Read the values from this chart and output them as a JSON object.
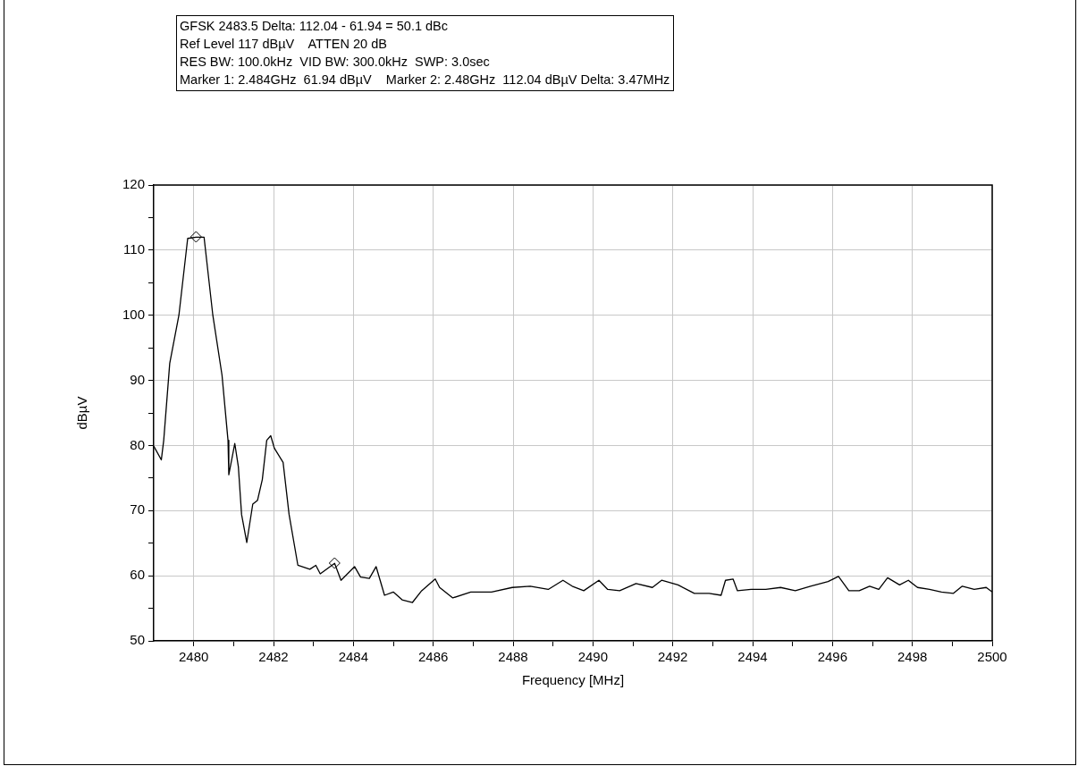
{
  "chart_data": {
    "type": "line",
    "xlabel": "Frequency [MHz]",
    "ylabel": "dBµV",
    "annotations": [
      "GFSK 2483.5 Delta: 112.04 - 61.94 = 50.1 dBc",
      "Ref Level 117 dBµV    ATTEN 20 dB",
      "RES BW: 100.0kHz  VID BW: 300.0kHz  SWP: 3.0sec",
      "Marker 1: 2.484GHz  61.94 dBµV    Marker 2: 2.48GHz  112.04 dBµV Delta: 3.47MHz"
    ],
    "xlim": [
      2479,
      2500
    ],
    "xticks": [
      2480,
      {
        "value": 2481,
        "label": null
      },
      2482,
      {
        "value": 2483,
        "label": null
      },
      2484,
      {
        "value": 2485,
        "label": null
      },
      2486,
      {
        "value": 2487,
        "label": null
      },
      2488,
      {
        "value": 2489,
        "label": null
      },
      2490,
      {
        "value": 2491,
        "label": null
      },
      2492,
      {
        "value": 2493,
        "label": null
      },
      2494,
      {
        "value": 2495,
        "label": null
      },
      2496,
      {
        "value": 2497,
        "label": null
      },
      2498,
      {
        "value": 2499,
        "label": null
      },
      2500
    ],
    "ylim": [
      50,
      120
    ],
    "yticks": [
      50,
      {
        "value": 55,
        "label": null
      },
      60,
      {
        "value": 65,
        "label": null
      },
      70,
      {
        "value": 75,
        "label": null
      },
      80,
      {
        "value": 85,
        "label": null
      },
      90,
      {
        "value": 95,
        "label": null
      },
      100,
      {
        "value": 105,
        "label": null
      },
      110,
      {
        "value": 115,
        "label": null
      },
      120
    ],
    "grid": true,
    "legend": false,
    "marker": "none",
    "line_style": "solid",
    "series": [
      {
        "type": "line",
        "color": "#000000",
        "x": [
          2479.0,
          2479.19,
          2479.25,
          2479.4,
          2479.63,
          2479.85,
          2480.06,
          2480.26,
          2480.48,
          2480.71,
          2480.86,
          2480.88,
          2481.03,
          2481.12,
          2481.2,
          2481.33,
          2481.48,
          2481.6,
          2481.72,
          2481.83,
          2481.93,
          2482.02,
          2482.24,
          2482.39,
          2482.61,
          2482.91,
          2483.06,
          2483.17,
          2483.53,
          2483.69,
          2484.03,
          2484.18,
          2484.4,
          2484.57,
          2484.78,
          2485.0,
          2485.22,
          2485.48,
          2485.71,
          2486.05,
          2486.16,
          2486.49,
          2486.94,
          2487.46,
          2487.98,
          2488.43,
          2488.88,
          2489.25,
          2489.48,
          2489.77,
          2490.15,
          2490.37,
          2490.67,
          2491.08,
          2491.49,
          2491.72,
          2492.13,
          2492.54,
          2492.91,
          2493.21,
          2493.32,
          2493.51,
          2493.62,
          2493.96,
          2494.33,
          2494.7,
          2495.07,
          2495.45,
          2495.89,
          2496.15,
          2496.41,
          2496.67,
          2496.93,
          2497.16,
          2497.38,
          2497.68,
          2497.9,
          2498.13,
          2498.43,
          2498.73,
          2499.03,
          2499.25,
          2499.55,
          2499.85,
          2500.0
        ],
        "values": [
          79.9,
          77.8,
          80.8,
          92.6,
          100,
          111.8,
          112.0,
          112,
          100,
          90.8,
          80.8,
          75.5,
          80.3,
          76.7,
          69.4,
          65.1,
          71,
          71.6,
          74.8,
          80.8,
          81.5,
          79.6,
          77.4,
          69.4,
          61.6,
          61,
          61.6,
          60.3,
          61.9,
          59.3,
          61.4,
          59.8,
          59.6,
          61.4,
          57,
          57.5,
          56.3,
          55.9,
          57.7,
          59.5,
          58.2,
          56.6,
          57.5,
          57.5,
          58.2,
          58.4,
          57.9,
          59.3,
          58.4,
          57.7,
          59.3,
          57.9,
          57.7,
          58.8,
          58.2,
          59.3,
          58.6,
          57.3,
          57.3,
          57,
          59.3,
          59.5,
          57.7,
          57.9,
          57.9,
          58.2,
          57.7,
          58.4,
          59.1,
          59.9,
          57.7,
          57.7,
          58.4,
          57.9,
          59.7,
          58.6,
          59.3,
          58.2,
          57.9,
          57.5,
          57.3,
          58.4,
          57.9,
          58.2,
          57.5
        ]
      },
      {
        "type": "scatter",
        "color": "#000000",
        "marker": "diamond",
        "x": [
          2480.06,
          2483.53
        ],
        "values": [
          112.04,
          61.94
        ]
      }
    ]
  }
}
